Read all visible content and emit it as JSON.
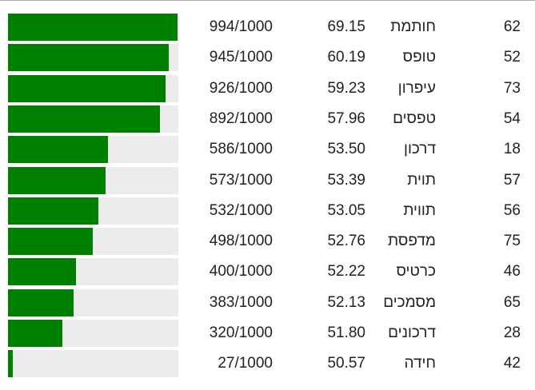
{
  "table": {
    "rows": [
      {
        "rank": 62,
        "word": "חותמת",
        "score": "69.15",
        "rating": {
          "value": 994,
          "label": "994/1000"
        }
      },
      {
        "rank": 52,
        "word": "טופס",
        "score": "60.19",
        "rating": {
          "value": 945,
          "label": "945/1000"
        }
      },
      {
        "rank": 73,
        "word": "עיפרון",
        "score": "59.23",
        "rating": {
          "value": 926,
          "label": "926/1000"
        }
      },
      {
        "rank": 54,
        "word": "טפסים",
        "score": "57.96",
        "rating": {
          "value": 892,
          "label": "892/1000"
        }
      },
      {
        "rank": 18,
        "word": "דרכון",
        "score": "53.50",
        "rating": {
          "value": 586,
          "label": "586/1000"
        }
      },
      {
        "rank": 57,
        "word": "תוית",
        "score": "53.39",
        "rating": {
          "value": 573,
          "label": "573/1000"
        }
      },
      {
        "rank": 56,
        "word": "תווית",
        "score": "53.05",
        "rating": {
          "value": 532,
          "label": "532/1000"
        }
      },
      {
        "rank": 75,
        "word": "מדפסת",
        "score": "52.76",
        "rating": {
          "value": 498,
          "label": "498/1000"
        }
      },
      {
        "rank": 46,
        "word": "כרטיס",
        "score": "52.22",
        "rating": {
          "value": 400,
          "label": "400/1000"
        }
      },
      {
        "rank": 65,
        "word": "מסמכים",
        "score": "52.13",
        "rating": {
          "value": 383,
          "label": "383/1000"
        }
      },
      {
        "rank": 28,
        "word": "דרכונים",
        "score": "51.80",
        "rating": {
          "value": 320,
          "label": "320/1000"
        }
      },
      {
        "rank": 42,
        "word": "חידה",
        "score": "50.57",
        "rating": {
          "value": 27,
          "label": "27/1000"
        }
      }
    ]
  }
}
